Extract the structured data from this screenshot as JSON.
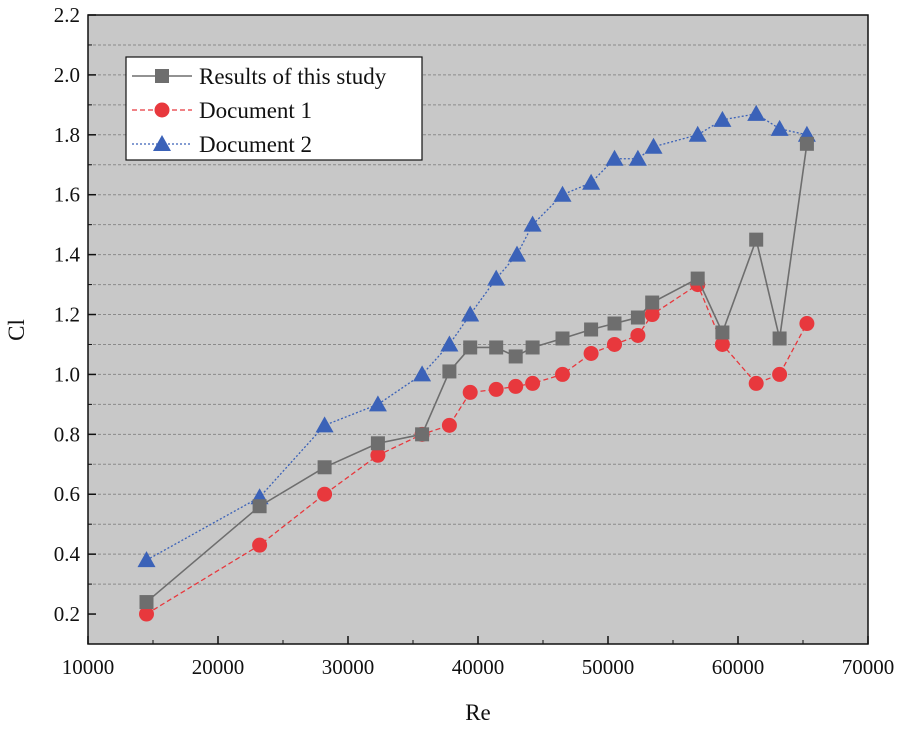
{
  "chart_data": {
    "type": "line",
    "xlabel": "Re",
    "ylabel": "Cl",
    "xlim": [
      10000,
      70000
    ],
    "ylim": [
      0.1,
      2.2
    ],
    "xticks": [
      10000,
      20000,
      30000,
      40000,
      50000,
      60000,
      70000
    ],
    "yticks": [
      0.2,
      0.4,
      0.6,
      0.8,
      1.0,
      1.2,
      1.4,
      1.6,
      1.8,
      2.0,
      2.2
    ],
    "xtick_labels": [
      "10000",
      "20000",
      "30000",
      "40000",
      "50000",
      "60000",
      "70000"
    ],
    "ytick_labels": [
      "0.2",
      "0.4",
      "0.6",
      "0.8",
      "1.0",
      "1.2",
      "1.4",
      "1.6",
      "1.8",
      "2.0",
      "2.2"
    ],
    "grid": "horizontal dashed",
    "legend_position": "top-left",
    "plot_background": "#c8c8c8",
    "series": [
      {
        "name": "Results of this study",
        "color": "#6e6e6e",
        "marker": "square",
        "line": "solid",
        "x": [
          14500,
          23200,
          28200,
          32300,
          35700,
          37800,
          39400,
          41400,
          42900,
          44200,
          46500,
          48700,
          50500,
          52300,
          53400,
          56900,
          58800,
          61400,
          63200,
          65300
        ],
        "y": [
          0.24,
          0.56,
          0.69,
          0.77,
          0.8,
          1.01,
          1.09,
          1.09,
          1.06,
          1.09,
          1.12,
          1.15,
          1.17,
          1.19,
          1.24,
          1.32,
          1.14,
          1.45,
          1.12,
          1.77
        ]
      },
      {
        "name": "Document 1",
        "color": "#e8383d",
        "marker": "circle",
        "line": "dashed",
        "x": [
          14500,
          23200,
          28200,
          32300,
          35700,
          37800,
          39400,
          41400,
          42900,
          44200,
          46500,
          48700,
          50500,
          52300,
          53400,
          56900,
          58800,
          61400,
          63200,
          65300
        ],
        "y": [
          0.2,
          0.43,
          0.6,
          0.73,
          0.8,
          0.83,
          0.94,
          0.95,
          0.96,
          0.97,
          1.0,
          1.07,
          1.1,
          1.13,
          1.2,
          1.3,
          1.1,
          0.97,
          1.0,
          1.17
        ]
      },
      {
        "name": "Document 2",
        "color": "#3b62b8",
        "marker": "triangle",
        "line": "dotted",
        "x": [
          14500,
          23200,
          28200,
          32300,
          35700,
          37800,
          39400,
          41400,
          43000,
          44200,
          46500,
          48700,
          50500,
          52300,
          53500,
          56900,
          58800,
          61400,
          63200,
          65300
        ],
        "y": [
          0.38,
          0.59,
          0.83,
          0.9,
          1.0,
          1.1,
          1.2,
          1.32,
          1.4,
          1.5,
          1.6,
          1.64,
          1.72,
          1.72,
          1.76,
          1.8,
          1.85,
          1.87,
          1.82,
          1.8
        ]
      }
    ]
  }
}
